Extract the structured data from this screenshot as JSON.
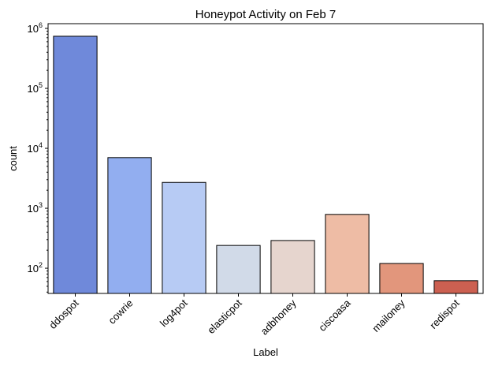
{
  "chart_data": {
    "type": "bar",
    "title": "Honeypot Activity on Feb 7",
    "xlabel": "Label",
    "ylabel": "count",
    "yscale": "log",
    "ylim": [
      38,
      1200000
    ],
    "y_ticks": [
      {
        "value": 100,
        "base": "10",
        "exp": "2"
      },
      {
        "value": 1000,
        "base": "10",
        "exp": "3"
      },
      {
        "value": 10000,
        "base": "10",
        "exp": "4"
      },
      {
        "value": 100000,
        "base": "10",
        "exp": "5"
      },
      {
        "value": 1000000,
        "base": "10",
        "exp": "6"
      }
    ],
    "categories": [
      "ddospot",
      "cowrie",
      "log4pot",
      "elasticpot",
      "adbhoney",
      "ciscoasa",
      "mailoney",
      "redispot"
    ],
    "values": [
      740000,
      7000,
      2700,
      240,
      290,
      790,
      120,
      62
    ],
    "colors": [
      "#6f89da",
      "#92aef0",
      "#b7cbf4",
      "#d1dae8",
      "#e6d5ce",
      "#eebca5",
      "#e2967c",
      "#cc6051"
    ],
    "grid": false
  }
}
